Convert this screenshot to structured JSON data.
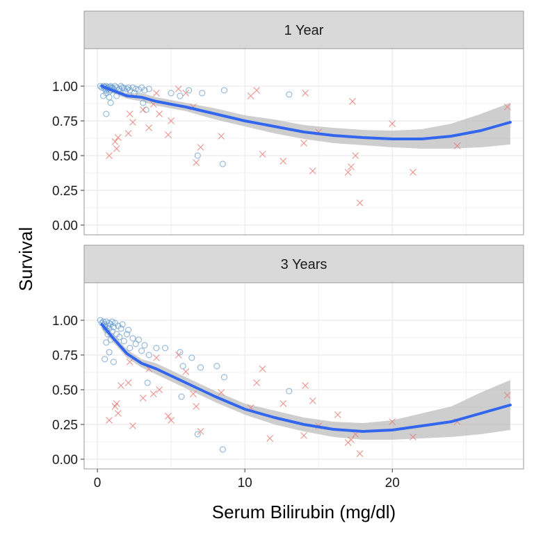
{
  "chart_data": {
    "type": "scatter",
    "xlabel": "Serum Bilirubin (mg/dl)",
    "ylabel": "Survival",
    "xlim": [
      -0.9,
      28.9
    ],
    "ylim": [
      -0.07,
      1.27
    ],
    "x_ticks": [
      0,
      10,
      20
    ],
    "y_ticks": [
      0.0,
      0.25,
      0.5,
      0.75,
      1.0
    ],
    "y_tick_labels": [
      "0.00",
      "0.25",
      "0.50",
      "0.75",
      "1.00"
    ],
    "grid": true,
    "legend": "none",
    "colors": {
      "censored_points": "#6a9fd1",
      "event_points": "#e8807a",
      "smooth_line": "#3366ee",
      "ci_band": "#bdbdbd",
      "strip_fill": "#d9d9d9",
      "panel_border": "#999999",
      "grid": "#ebebeb"
    },
    "panels": [
      {
        "strip_label": "1 Year",
        "smooth": {
          "x": [
            0.3,
            1,
            2,
            3,
            4,
            6,
            8,
            10,
            12,
            14,
            16,
            18,
            20,
            22,
            24,
            26,
            28
          ],
          "y": [
            1.0,
            0.97,
            0.93,
            0.92,
            0.89,
            0.85,
            0.8,
            0.75,
            0.71,
            0.67,
            0.645,
            0.63,
            0.62,
            0.62,
            0.64,
            0.68,
            0.74
          ],
          "lower": [
            0.98,
            0.95,
            0.91,
            0.89,
            0.86,
            0.82,
            0.76,
            0.71,
            0.66,
            0.62,
            0.59,
            0.575,
            0.56,
            0.55,
            0.55,
            0.56,
            0.58
          ],
          "upper": [
            1.02,
            0.99,
            0.95,
            0.95,
            0.92,
            0.88,
            0.84,
            0.79,
            0.76,
            0.72,
            0.7,
            0.685,
            0.68,
            0.69,
            0.73,
            0.8,
            0.88
          ]
        },
        "censored": [
          [
            0.2,
            1.0
          ],
          [
            0.3,
            0.99
          ],
          [
            0.4,
            1.0
          ],
          [
            0.5,
            0.98
          ],
          [
            0.5,
            0.995
          ],
          [
            0.6,
            0.97
          ],
          [
            0.6,
            1.0
          ],
          [
            0.7,
            0.99
          ],
          [
            0.7,
            0.98
          ],
          [
            0.8,
            0.96
          ],
          [
            0.8,
            0.995
          ],
          [
            0.9,
            1.0
          ],
          [
            0.9,
            0.97
          ],
          [
            1.0,
            0.99
          ],
          [
            1.0,
            0.985
          ],
          [
            1.1,
            0.98
          ],
          [
            1.2,
            1.0
          ],
          [
            1.3,
            0.99
          ],
          [
            1.4,
            0.97
          ],
          [
            1.5,
            0.98
          ],
          [
            1.6,
            1.0
          ],
          [
            1.7,
            0.99
          ],
          [
            1.8,
            0.985
          ],
          [
            2.0,
            0.98
          ],
          [
            2.1,
            0.99
          ],
          [
            2.2,
            0.97
          ],
          [
            2.4,
            0.99
          ],
          [
            2.6,
            0.98
          ],
          [
            2.8,
            0.975
          ],
          [
            3.0,
            0.99
          ],
          [
            3.2,
            0.97
          ],
          [
            3.5,
            0.98
          ],
          [
            0.4,
            0.93
          ],
          [
            0.6,
            0.95
          ],
          [
            0.8,
            0.92
          ],
          [
            1.3,
            0.93
          ],
          [
            1.9,
            0.96
          ],
          [
            2.5,
            0.95
          ],
          [
            3.1,
            0.88
          ],
          [
            3.3,
            0.83
          ],
          [
            0.6,
            0.8
          ],
          [
            0.9,
            0.88
          ],
          [
            5.0,
            0.95
          ],
          [
            5.6,
            0.93
          ],
          [
            6.2,
            0.97
          ],
          [
            7.1,
            0.95
          ],
          [
            8.6,
            0.97
          ],
          [
            13.0,
            0.94
          ],
          [
            6.8,
            0.5
          ],
          [
            8.5,
            0.44
          ]
        ],
        "events": [
          [
            0.8,
            0.5
          ],
          [
            1.2,
            0.6
          ],
          [
            1.3,
            0.55
          ],
          [
            1.4,
            0.63
          ],
          [
            2.2,
            0.8
          ],
          [
            2.4,
            0.74
          ],
          [
            2.1,
            0.66
          ],
          [
            3.1,
            0.83
          ],
          [
            3.5,
            0.7
          ],
          [
            4.0,
            0.95
          ],
          [
            4.2,
            0.8
          ],
          [
            5.0,
            0.75
          ],
          [
            5.5,
            0.98
          ],
          [
            6.0,
            0.95
          ],
          [
            6.5,
            0.85
          ],
          [
            6.7,
            0.45
          ],
          [
            7.0,
            0.56
          ],
          [
            8.4,
            0.64
          ],
          [
            10.4,
            0.93
          ],
          [
            10.8,
            0.97
          ],
          [
            11.2,
            0.51
          ],
          [
            12.6,
            0.46
          ],
          [
            14.1,
            0.95
          ],
          [
            14.0,
            0.59
          ],
          [
            14.6,
            0.39
          ],
          [
            15.0,
            0.67
          ],
          [
            17.0,
            0.38
          ],
          [
            17.2,
            0.42
          ],
          [
            17.5,
            0.5
          ],
          [
            17.8,
            0.16
          ],
          [
            17.3,
            0.89
          ],
          [
            20.0,
            0.73
          ],
          [
            21.4,
            0.38
          ],
          [
            24.4,
            0.57
          ],
          [
            27.8,
            0.85
          ],
          [
            4.8,
            0.65
          ],
          [
            3.8,
            0.87
          ]
        ]
      },
      {
        "strip_label": "3 Years",
        "smooth": {
          "x": [
            0.3,
            1,
            2,
            3,
            4,
            6,
            8,
            10,
            12,
            14,
            16,
            18,
            20,
            22,
            24,
            26,
            28
          ],
          "y": [
            0.97,
            0.88,
            0.76,
            0.69,
            0.65,
            0.55,
            0.45,
            0.36,
            0.3,
            0.25,
            0.215,
            0.2,
            0.21,
            0.24,
            0.27,
            0.33,
            0.39
          ],
          "lower": [
            0.94,
            0.85,
            0.73,
            0.66,
            0.61,
            0.51,
            0.41,
            0.32,
            0.25,
            0.2,
            0.16,
            0.14,
            0.14,
            0.15,
            0.16,
            0.18,
            0.21
          ],
          "upper": [
            1.0,
            0.91,
            0.79,
            0.72,
            0.69,
            0.59,
            0.49,
            0.4,
            0.35,
            0.3,
            0.27,
            0.26,
            0.28,
            0.33,
            0.38,
            0.48,
            0.57
          ]
        },
        "censored": [
          [
            0.2,
            1.0
          ],
          [
            0.3,
            0.98
          ],
          [
            0.4,
            0.99
          ],
          [
            0.5,
            0.97
          ],
          [
            0.5,
            0.95
          ],
          [
            0.6,
            0.99
          ],
          [
            0.6,
            0.93
          ],
          [
            0.7,
            0.96
          ],
          [
            0.7,
            0.9
          ],
          [
            0.8,
            0.98
          ],
          [
            0.8,
            0.94
          ],
          [
            0.9,
            0.97
          ],
          [
            0.9,
            0.86
          ],
          [
            1.0,
            0.99
          ],
          [
            1.0,
            0.92
          ],
          [
            1.1,
            0.95
          ],
          [
            1.2,
            0.98
          ],
          [
            1.3,
            0.9
          ],
          [
            1.4,
            0.96
          ],
          [
            1.5,
            0.88
          ],
          [
            1.6,
            0.94
          ],
          [
            1.7,
            0.97
          ],
          [
            1.8,
            0.85
          ],
          [
            2.0,
            0.9
          ],
          [
            2.1,
            0.93
          ],
          [
            2.2,
            0.8
          ],
          [
            2.4,
            0.87
          ],
          [
            2.6,
            0.83
          ],
          [
            2.8,
            0.86
          ],
          [
            3.0,
            0.78
          ],
          [
            3.2,
            0.82
          ],
          [
            3.5,
            0.75
          ],
          [
            0.5,
            0.72
          ],
          [
            0.8,
            0.77
          ],
          [
            4.0,
            0.8
          ],
          [
            4.6,
            0.8
          ],
          [
            5.6,
            0.77
          ],
          [
            5.8,
            0.67
          ],
          [
            6.4,
            0.73
          ],
          [
            7.0,
            0.66
          ],
          [
            8.1,
            0.67
          ],
          [
            13.0,
            0.49
          ],
          [
            6.8,
            0.18
          ],
          [
            8.5,
            0.07
          ],
          [
            8.6,
            0.59
          ],
          [
            0.6,
            0.84
          ],
          [
            1.1,
            0.7
          ],
          [
            5.7,
            0.45
          ],
          [
            3.4,
            0.55
          ]
        ],
        "events": [
          [
            0.8,
            0.28
          ],
          [
            1.2,
            0.38
          ],
          [
            1.3,
            0.4
          ],
          [
            1.4,
            0.33
          ],
          [
            2.2,
            0.7
          ],
          [
            2.4,
            0.24
          ],
          [
            2.1,
            0.55
          ],
          [
            3.1,
            0.44
          ],
          [
            3.5,
            0.65
          ],
          [
            4.0,
            0.73
          ],
          [
            4.2,
            0.5
          ],
          [
            5.0,
            0.28
          ],
          [
            5.5,
            0.75
          ],
          [
            6.0,
            0.63
          ],
          [
            6.5,
            0.47
          ],
          [
            6.7,
            0.38
          ],
          [
            7.0,
            0.2
          ],
          [
            8.4,
            0.48
          ],
          [
            10.4,
            0.37
          ],
          [
            10.8,
            0.55
          ],
          [
            11.2,
            0.65
          ],
          [
            12.6,
            0.4
          ],
          [
            14.1,
            0.53
          ],
          [
            14.0,
            0.17
          ],
          [
            14.6,
            0.42
          ],
          [
            15.0,
            0.24
          ],
          [
            17.0,
            0.12
          ],
          [
            17.2,
            0.14
          ],
          [
            17.5,
            0.18
          ],
          [
            17.8,
            0.04
          ],
          [
            16.3,
            0.32
          ],
          [
            20.0,
            0.27
          ],
          [
            21.4,
            0.16
          ],
          [
            24.4,
            0.27
          ],
          [
            27.8,
            0.46
          ],
          [
            4.8,
            0.31
          ],
          [
            3.8,
            0.47
          ],
          [
            1.6,
            0.53
          ],
          [
            11.7,
            0.15
          ]
        ]
      }
    ]
  }
}
